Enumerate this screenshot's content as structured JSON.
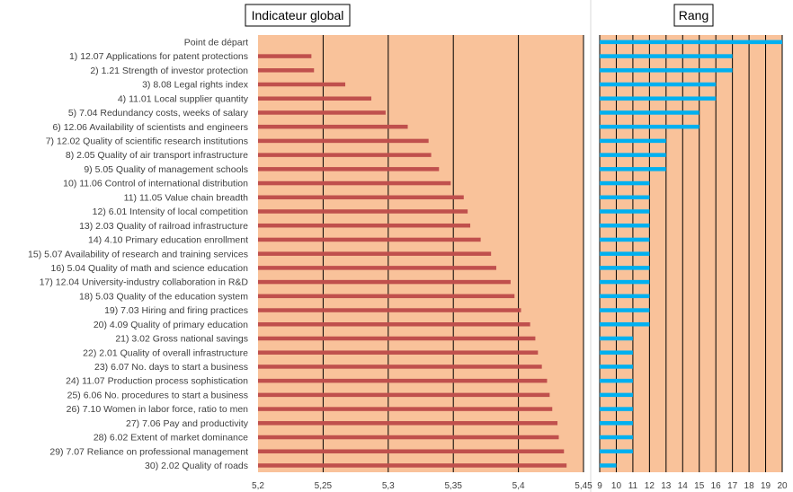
{
  "chart_data": [
    {
      "type": "bar",
      "title": "Indicateur global",
      "orientation": "horizontal",
      "categories": [
        "Point de départ",
        "1)  12.07 Applications for patent protections",
        "2)  1.21 Strength of investor protection",
        "3)  8.08 Legal rights index",
        "4)  11.01 Local supplier quantity",
        "5)  7.04 Redundancy costs, weeks of salary",
        "6)  12.06 Availability of scientists and engineers",
        "7)  12.02 Quality of scientific research institutions",
        "8)  2.05 Quality of air transport infrastructure",
        "9)  5.05 Quality of management schools",
        "10)  11.06 Control of international distribution",
        "11)  11.05 Value chain breadth",
        "12)  6.01 Intensity of local competition",
        "13)  2.03 Quality of railroad infrastructure",
        "14)  4.10 Primary education enrollment",
        "15)  5.07 Availability of research and training services",
        "16)  5.04 Quality of math and science education",
        "17)  12.04 University-industry collaboration in R&D",
        "18)  5.03 Quality of the education system",
        "19)  7.03 Hiring and firing practices",
        "20)  4.09 Quality of primary education",
        "21)  3.02 Gross national savings",
        "22)  2.01 Quality of overall infrastructure",
        "23)  6.07 No. days to start a business",
        "24)  11.07 Production process sophistication",
        "25)  6.06 No. procedures to start a business",
        "26)  7.10 Women in labor force, ratio to men",
        "27)  7.06 Pay and productivity",
        "28)  6.02 Extent of market dominance",
        "29)  7.07 Reliance on professional management",
        "30)  2.02 Quality of roads"
      ],
      "values": [
        5.2,
        5.241,
        5.243,
        5.267,
        5.287,
        5.298,
        5.315,
        5.331,
        5.333,
        5.339,
        5.348,
        5.358,
        5.361,
        5.363,
        5.371,
        5.379,
        5.383,
        5.394,
        5.397,
        5.402,
        5.409,
        5.413,
        5.415,
        5.418,
        5.422,
        5.424,
        5.426,
        5.43,
        5.431,
        5.435,
        5.437
      ],
      "xlim": [
        5.2,
        5.45
      ],
      "ticks": [
        "5,2",
        "5,25",
        "5,3",
        "5,35",
        "5,4",
        "5,45"
      ],
      "tick_values": [
        5.2,
        5.25,
        5.3,
        5.35,
        5.4,
        5.45
      ],
      "grid": true,
      "colors": {
        "bar": "#c0504d",
        "plot_bg": "#f9c29a"
      }
    },
    {
      "type": "bar",
      "title": "Rang",
      "orientation": "horizontal",
      "values": [
        20,
        17,
        17,
        16,
        16,
        15,
        15,
        13,
        13,
        13,
        12,
        12,
        12,
        12,
        12,
        12,
        12,
        12,
        12,
        12,
        12,
        11,
        11,
        11,
        11,
        11,
        11,
        11,
        11,
        11,
        10
      ],
      "xlim": [
        9,
        20
      ],
      "ticks": [
        "9",
        "10",
        "11",
        "12",
        "13",
        "14",
        "15",
        "16",
        "17",
        "18",
        "19",
        "20"
      ],
      "tick_values": [
        9,
        10,
        11,
        12,
        13,
        14,
        15,
        16,
        17,
        18,
        19,
        20
      ],
      "grid": true,
      "colors": {
        "bar": "#00b0f0",
        "plot_bg": "#f9c29a"
      }
    }
  ]
}
